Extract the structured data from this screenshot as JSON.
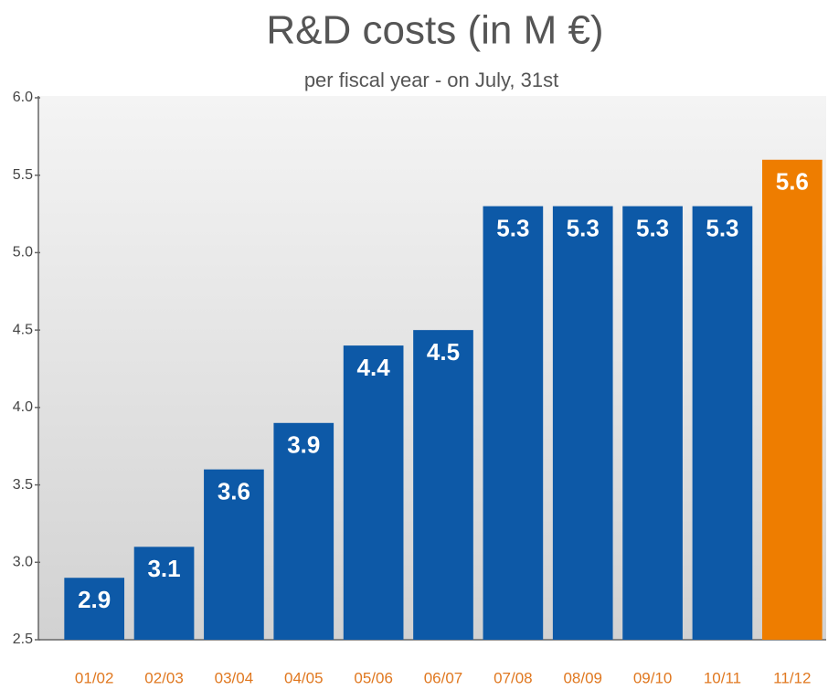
{
  "chart_data": {
    "type": "bar",
    "title": "R&D costs (in M €)",
    "subtitle": "per fiscal year - on July, 31st",
    "categories": [
      "01/02",
      "02/03",
      "03/04",
      "04/05",
      "05/06",
      "06/07",
      "07/08",
      "08/09",
      "09/10",
      "10/11",
      "11/12"
    ],
    "values": [
      2.9,
      3.1,
      3.6,
      3.9,
      4.4,
      4.5,
      5.3,
      5.3,
      5.3,
      5.3,
      5.6
    ],
    "colors": [
      "#0d59a7",
      "#0d59a7",
      "#0d59a7",
      "#0d59a7",
      "#0d59a7",
      "#0d59a7",
      "#0d59a7",
      "#0d59a7",
      "#0d59a7",
      "#0d59a7",
      "#ee7d00"
    ],
    "ylim": [
      2.5,
      6.0
    ],
    "yticks": [
      2.5,
      {
        "value": 3,
        "label": "3.0"
      },
      3.5,
      {
        "value": 4,
        "label": "4.0"
      },
      4.5,
      {
        "value": 5,
        "label": "5.0"
      },
      5.5,
      {
        "value": 6,
        "label": "6.0"
      }
    ],
    "grid": false
  }
}
